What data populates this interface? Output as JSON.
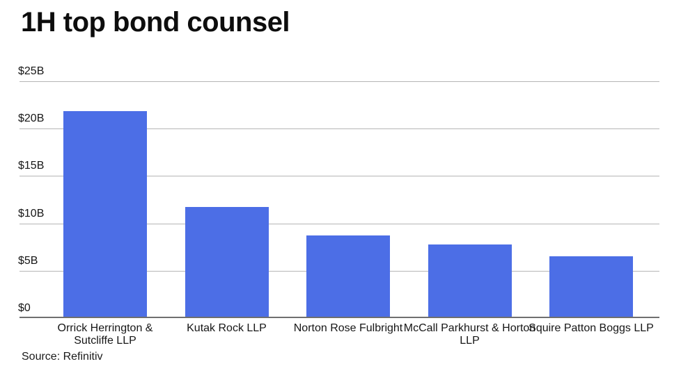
{
  "title": "1H top bond counsel",
  "source_label": "Source: Refinitiv",
  "colors": {
    "bar": "#4c6ee6",
    "gridline": "#b5b5b5",
    "axis_line": "#6f6f6f",
    "text": "#161616",
    "title": "#0d0d0d",
    "background": "#ffffff"
  },
  "chart_data": {
    "type": "bar",
    "title": "1H top bond counsel",
    "categories": [
      "Orrick Herrington & Sutcliffe LLP",
      "Kutak Rock LLP",
      "Norton Rose Fulbright",
      "McCall Parkhurst & Horton LLP",
      "Squire Patton Boggs LLP"
    ],
    "values": [
      21.7,
      11.6,
      8.6,
      7.6,
      6.4
    ],
    "unit": "billions USD",
    "xlabel": "",
    "ylabel": "",
    "ylim": [
      0,
      25
    ],
    "ytick_interval": 5,
    "yticks": [
      "$0",
      "$5B",
      "$10B",
      "$15B",
      "$20B",
      "$25B"
    ],
    "grid": true,
    "legend": false,
    "source": "Source: Refinitiv"
  }
}
